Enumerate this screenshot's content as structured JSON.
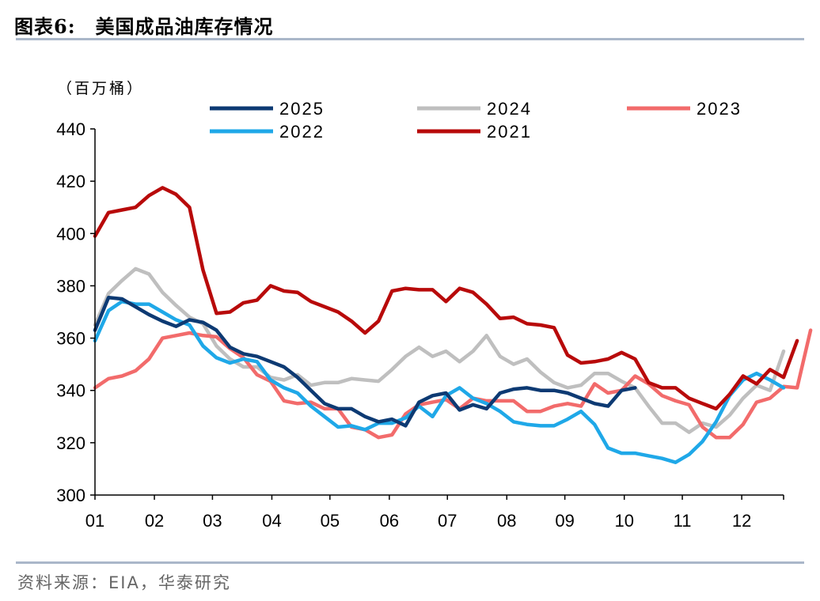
{
  "figure": {
    "title": "图表6:　美国成品油库存情况",
    "source": "资料来源：EIA，华泰研究"
  },
  "chart_data": {
    "type": "line",
    "unit_label": "（百万桶）",
    "ylim": [
      300,
      440
    ],
    "yticks": [
      300,
      320,
      340,
      360,
      380,
      400,
      420,
      440
    ],
    "xlim": [
      1,
      52
    ],
    "xticks": [
      {
        "label": "01",
        "week": 1
      },
      {
        "label": "02",
        "week": 5.4
      },
      {
        "label": "03",
        "week": 9.7
      },
      {
        "label": "04",
        "week": 14.1
      },
      {
        "label": "05",
        "week": 18.4
      },
      {
        "label": "06",
        "week": 22.8
      },
      {
        "label": "07",
        "week": 27.1
      },
      {
        "label": "08",
        "week": 31.5
      },
      {
        "label": "09",
        "week": 35.8
      },
      {
        "label": "10",
        "week": 40.2
      },
      {
        "label": "11",
        "week": 44.5
      },
      {
        "label": "12",
        "week": 48.9
      }
    ],
    "legend_position": "top",
    "series": [
      {
        "name": "2025",
        "color": "#0d3a73",
        "values": [
          363,
          375.5,
          375,
          372,
          369,
          366.5,
          364.5,
          367,
          366,
          363,
          356.5,
          354,
          353,
          351,
          349,
          345,
          340,
          335,
          333,
          333,
          330,
          328,
          329,
          326.5,
          335.5,
          338,
          339,
          332.5,
          334.5,
          333,
          339,
          340.5,
          341,
          340,
          340,
          339,
          337,
          335,
          334,
          340,
          341
        ]
      },
      {
        "name": "2024",
        "color": "#bfbfbf",
        "values": [
          365,
          377,
          382,
          386.5,
          384.5,
          377.5,
          372.5,
          368,
          365.5,
          357,
          352,
          349,
          349,
          345,
          344,
          346,
          342,
          343,
          343,
          344.5,
          344,
          343.5,
          348,
          353,
          356.5,
          353,
          355,
          351,
          355,
          361,
          353,
          350,
          352,
          347,
          343,
          341,
          342,
          346.5,
          346.5,
          343.5,
          341,
          334,
          327.5,
          327.5,
          324,
          327.5,
          326,
          330.5,
          337,
          342,
          340,
          355
        ]
      },
      {
        "name": "2023",
        "color": "#f26b6b",
        "values": [
          341,
          344.5,
          345.5,
          347.5,
          352,
          360,
          361,
          362,
          361,
          360.5,
          356,
          352.5,
          346,
          343.5,
          336,
          335,
          335.5,
          333,
          333,
          326,
          325,
          322,
          323,
          331,
          334.5,
          335.5,
          336.5,
          333,
          337,
          336,
          336,
          336,
          332,
          332,
          334,
          335,
          334,
          342.5,
          339,
          340,
          345.5,
          342.5,
          338,
          336,
          334.5,
          326,
          322,
          322,
          327,
          335.5,
          337,
          341.5,
          341,
          363
        ]
      },
      {
        "name": "2022",
        "color": "#1fa8e8",
        "values": [
          359,
          370.5,
          374,
          373,
          373,
          370,
          367,
          365,
          357,
          352.5,
          350.5,
          352,
          351,
          344,
          341,
          339,
          334,
          330,
          326,
          326.5,
          325,
          327.5,
          327.5,
          329.5,
          334,
          330,
          338,
          341,
          337,
          335,
          332,
          328,
          327,
          326.5,
          326.5,
          329,
          332,
          327,
          318,
          316,
          316,
          315,
          314,
          312.5,
          315.5,
          320.5,
          328,
          338,
          344,
          346.5,
          344,
          341
        ]
      },
      {
        "name": "2021",
        "color": "#b80a0a",
        "values": [
          399,
          408,
          409,
          410,
          414.5,
          417.5,
          415,
          410,
          386,
          369.5,
          370,
          373.5,
          374.5,
          380,
          378,
          377.5,
          374,
          372,
          370,
          366.5,
          362,
          366.5,
          378,
          379,
          378.5,
          378.5,
          374,
          379,
          377.5,
          373,
          367.5,
          368,
          365.5,
          365,
          364,
          353.5,
          350.5,
          351,
          352,
          354.5,
          352,
          343,
          341,
          341,
          337,
          335,
          333,
          338.5,
          345.5,
          342.5,
          348,
          345,
          359
        ]
      }
    ]
  }
}
